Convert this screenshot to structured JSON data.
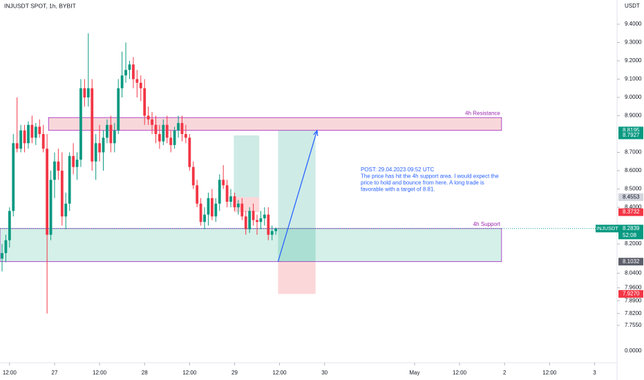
{
  "chart_data": {
    "type": "candlestick",
    "title": "INJUSDT SPOT, 1h, BYBIT",
    "currency": "USDT",
    "open": [
      8.12,
      8.15,
      8.22,
      8.38,
      8.75,
      8.72,
      8.82,
      8.75,
      8.85,
      8.78,
      8.84,
      8.8,
      8.72,
      8.25,
      8.55,
      8.65,
      8.6,
      8.35,
      8.42,
      8.68,
      8.62,
      8.66,
      9.05,
      9.0,
      9.05,
      8.65,
      8.75,
      8.7,
      8.78,
      8.85,
      8.75,
      8.82,
      9.05,
      9.12,
      9.15,
      9.18,
      9.1,
      9.08,
      9.05,
      8.9,
      8.88,
      8.85,
      8.8,
      8.76,
      8.85,
      8.78,
      8.74,
      8.82,
      8.86,
      8.8,
      8.78,
      8.62,
      8.52,
      8.42,
      8.32,
      8.36,
      8.45,
      8.35,
      8.42,
      8.55,
      8.52,
      8.43,
      8.46,
      8.4,
      8.42,
      8.35,
      8.28,
      8.38,
      8.33,
      8.32,
      8.34,
      8.36,
      8.25,
      8.27
    ],
    "high": [
      8.2,
      8.25,
      8.4,
      8.8,
      9.0,
      8.85,
      8.85,
      8.87,
      8.9,
      8.86,
      8.88,
      8.85,
      8.8,
      8.6,
      8.7,
      8.72,
      8.7,
      8.48,
      8.7,
      8.75,
      8.7,
      9.1,
      9.1,
      9.35,
      9.1,
      8.8,
      8.85,
      8.82,
      8.88,
      8.9,
      8.86,
      9.1,
      9.25,
      9.3,
      9.2,
      9.22,
      9.15,
      9.12,
      9.1,
      8.95,
      8.92,
      8.9,
      8.85,
      8.88,
      8.9,
      8.82,
      8.84,
      8.9,
      8.9,
      8.85,
      8.8,
      8.65,
      8.55,
      8.45,
      8.4,
      8.48,
      8.5,
      8.45,
      8.58,
      8.63,
      8.55,
      8.5,
      8.48,
      8.44,
      8.45,
      8.38,
      8.4,
      8.42,
      8.36,
      8.38,
      8.4,
      8.4,
      8.3,
      8.29
    ],
    "low": [
      8.05,
      8.1,
      8.18,
      8.35,
      8.7,
      8.7,
      8.7,
      8.72,
      8.75,
      8.74,
      8.78,
      8.7,
      7.82,
      8.22,
      8.45,
      8.55,
      8.3,
      8.28,
      8.38,
      8.58,
      8.55,
      8.62,
      8.95,
      8.95,
      8.6,
      8.55,
      8.65,
      8.6,
      8.75,
      8.7,
      8.7,
      8.8,
      9.0,
      9.08,
      9.1,
      9.05,
      9.0,
      8.98,
      8.85,
      8.85,
      8.8,
      8.75,
      8.72,
      8.74,
      8.75,
      8.7,
      8.72,
      8.78,
      8.76,
      8.75,
      8.6,
      8.5,
      8.4,
      8.3,
      8.28,
      8.3,
      8.33,
      8.32,
      8.38,
      8.5,
      8.4,
      8.4,
      8.38,
      8.36,
      8.33,
      8.25,
      8.26,
      8.3,
      8.25,
      8.28,
      8.3,
      8.22,
      8.22,
      8.25
    ],
    "close": [
      8.15,
      8.22,
      8.38,
      8.75,
      8.72,
      8.82,
      8.75,
      8.85,
      8.78,
      8.84,
      8.8,
      8.72,
      8.25,
      8.55,
      8.65,
      8.6,
      8.35,
      8.42,
      8.68,
      8.62,
      8.66,
      9.05,
      9.0,
      9.05,
      8.65,
      8.75,
      8.7,
      8.78,
      8.85,
      8.75,
      8.82,
      9.05,
      9.12,
      9.15,
      9.18,
      9.1,
      9.08,
      9.05,
      8.9,
      8.88,
      8.85,
      8.8,
      8.76,
      8.85,
      8.78,
      8.74,
      8.82,
      8.86,
      8.8,
      8.78,
      8.62,
      8.52,
      8.42,
      8.32,
      8.36,
      8.45,
      8.35,
      8.42,
      8.55,
      8.52,
      8.43,
      8.46,
      8.4,
      8.42,
      8.35,
      8.28,
      8.38,
      8.33,
      8.32,
      8.34,
      8.36,
      8.25,
      8.27,
      8.2839
    ],
    "up_color": "#089981",
    "down_color": "#f23645",
    "ylim": [
      7.57,
      9.532
    ],
    "yticks": [
      {
        "value": 9.4,
        "label": "9.4000"
      },
      {
        "value": 9.3,
        "label": "9.3000"
      },
      {
        "value": 9.2,
        "label": "9.2000"
      },
      {
        "value": 9.1,
        "label": "9.1000"
      },
      {
        "value": 9.0,
        "label": "9.0000"
      },
      {
        "value": 8.9,
        "label": "8.9000"
      },
      {
        "value": 8.7,
        "label": "8.7000"
      },
      {
        "value": 8.6,
        "label": "8.6000"
      },
      {
        "value": 8.5,
        "label": "8.5000"
      },
      {
        "value": 8.4,
        "label": "8.4000"
      },
      {
        "value": 8.2,
        "label": "8.2000"
      },
      {
        "value": 8.04,
        "label": "8.0400"
      },
      {
        "value": 7.96,
        "label": "7.9600"
      },
      {
        "value": 7.89,
        "label": "7.8900"
      },
      {
        "value": 7.82,
        "label": "7.8200"
      },
      {
        "value": 7.755,
        "label": "7.7550"
      }
    ],
    "bottom_axis_label": "0.0000",
    "xlim": [
      -0.55,
      164
    ],
    "xticks": [
      {
        "value": 2,
        "label": "12:00"
      },
      {
        "value": 14,
        "label": "27"
      },
      {
        "value": 26,
        "label": "12:00"
      },
      {
        "value": 38,
        "label": "28"
      },
      {
        "value": 50,
        "label": "12:00"
      },
      {
        "value": 62,
        "label": "29"
      },
      {
        "value": 74,
        "label": "12:00"
      },
      {
        "value": 86,
        "label": "30"
      },
      {
        "value": 110,
        "label": "May"
      },
      {
        "value": 122,
        "label": "12:00"
      },
      {
        "value": 134,
        "label": "2"
      },
      {
        "value": 146,
        "label": "12:00"
      },
      {
        "value": 158,
        "label": "3"
      }
    ],
    "zones": [
      {
        "name": "4h Resistance",
        "x": [
          12.4,
          133.2
        ],
        "y": [
          8.82,
          8.89
        ],
        "fill": "#f8d7da",
        "stroke": "#a020c0"
      },
      {
        "name": "4h Support",
        "x": [
          -0.55,
          133.2
        ],
        "y": [
          8.1032,
          8.2839
        ],
        "fill": "#d4f0e8",
        "stroke": "#a020c0"
      }
    ],
    "positions": [
      {
        "x": [
          61.8,
          68.6
        ],
        "entry": 8.4553,
        "target": 8.7927,
        "stop": 8.3732
      },
      {
        "x": [
          73.6,
          83.6
        ],
        "entry": 8.1032,
        "target": 8.8195,
        "stop": 7.927
      }
    ],
    "arrow": {
      "x": [
        73.6,
        84
      ],
      "y": [
        8.1032,
        8.8195
      ],
      "color": "#2962ff"
    },
    "price_tags": [
      {
        "value": 8.8195,
        "label": "8.8195",
        "color": "#089981"
      },
      {
        "value": 8.7927,
        "label": "8.7927",
        "color": "#089981"
      },
      {
        "value": 8.4553,
        "label": "8.4553",
        "color": "#d1d4dc"
      },
      {
        "value": 8.3732,
        "label": "8.3732",
        "color": "#f23645"
      },
      {
        "value": 8.1032,
        "label": "8.1032",
        "color": "#5d606b"
      },
      {
        "value": 7.927,
        "label": "7.9270",
        "color": "#f23645"
      }
    ],
    "last_price": {
      "symbol": "INJUSDT",
      "value": 8.2839,
      "label": "8.2839",
      "countdown": "52:08",
      "color": "#089981"
    },
    "post": [
      "POST: 29.04.2023 09:52 UTC",
      "The price has hit the 4h support area. I would expect the",
      "price to hold and bounce from here. A long trade is",
      "favorable with a target of 8.81."
    ]
  }
}
